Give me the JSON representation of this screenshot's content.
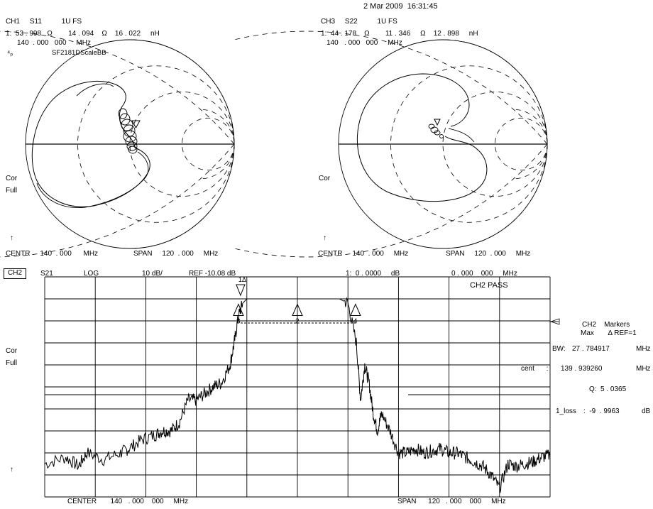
{
  "timestamp": "2 Mar 2009  16:31:45",
  "ch1": {
    "header": "CH1     S11          1U FS",
    "marker_line": "1:  53 . 998   Ω        14 . 094    Ω    16 . 022     nH",
    "freq_line": "140  . 000   000     MHz",
    "trace_note": "SF2181DScaleBB",
    "side_label_1": "Cor",
    "side_label_2": "Full",
    "arrow": "↑",
    "marker_num": "1",
    "footer_centr": "CENTR     140  . 000      MHz",
    "footer_span": "SPAN     120  . 000     MHz"
  },
  "ch3": {
    "header": "CH3     S22          1U FS",
    "marker_line": "1:  44 . 178    Ω        11 . 346     Ω    12 . 898     nH",
    "freq_line": "140   . 000   000     MHz",
    "side_label_1": "Cor",
    "arrow": "↑",
    "footer_centr": "CENTR     140  . 000     MHz",
    "footer_span": "SPAN     120  . 000     MHz"
  },
  "ch2": {
    "tag": "CH2",
    "param": "S21",
    "format": "LOG",
    "scale": "10 dB/",
    "ref": "REF -10.08 dB",
    "marker_readout": "1:  0 . 0000     dB",
    "marker_freq": "0 . 000    000     MHz",
    "pass_label": "CH2 PASS",
    "side_label_1": "Cor",
    "side_label_2": "Full",
    "arrow": "↑",
    "footer_center": "CENTER       140   . 000    000     MHz",
    "footer_span": "SPAN      120   . 000    000     MHz",
    "marker_panel": {
      "title": "CH2    Markers",
      "subtitle": "Max       Δ REF=1",
      "bw_label": "BW:",
      "bw_value": "27 . 784917",
      "bw_unit": "MHz",
      "cent_label": "cent      :",
      "cent_value": "139 . 939260",
      "cent_unit": "MHz",
      "q_label": "Q:",
      "q_value": "5 . 0365",
      "loss_label": "1_loss",
      "loss_value": ":  -9  . 9963",
      "loss_unit": "dB"
    },
    "markers": [
      "1",
      "2",
      "3",
      "4"
    ],
    "ref_marker_symbol": "1Δ"
  },
  "chart_data": [
    {
      "type": "smith",
      "channel": "CH1",
      "parameter": "S11",
      "scale": "1U FS",
      "marker_1": {
        "resistance_ohm": 53.998,
        "reactance_ohm": 14.094,
        "inductance_nH": 16.022,
        "freq_MHz": 140.0
      },
      "center_MHz": 140.0,
      "span_MHz": 120.0
    },
    {
      "type": "smith",
      "channel": "CH3",
      "parameter": "S22",
      "scale": "1U FS",
      "marker_1": {
        "resistance_ohm": 44.178,
        "reactance_ohm": 11.346,
        "inductance_nH": 12.898,
        "freq_MHz": 140.0
      },
      "center_MHz": 140.0,
      "span_MHz": 120.0
    },
    {
      "type": "line",
      "channel": "CH2",
      "parameter": "S21",
      "format": "LOG",
      "scale_dB_per_div": 10,
      "ref_dB": -10.08,
      "xlim": [
        80,
        200
      ],
      "ylim": [
        -100,
        0
      ],
      "grid": true,
      "x": [
        80,
        85,
        88,
        90,
        94,
        98,
        100,
        103,
        106,
        108,
        110,
        112,
        114,
        116,
        118,
        120,
        122,
        124,
        125,
        126,
        127,
        128,
        130,
        140,
        150,
        152,
        154,
        155,
        156,
        157,
        158,
        159,
        160,
        162,
        164,
        166,
        168,
        170,
        172,
        174,
        176,
        178,
        180,
        182,
        184,
        186,
        188,
        190,
        192,
        194,
        196,
        198,
        200
      ],
      "y": [
        -85,
        -82,
        -86,
        -80,
        -83,
        -80,
        -78,
        -74,
        -72,
        -70,
        -70,
        -66,
        -56,
        -56,
        -53,
        -50,
        -48,
        -40,
        -30,
        -18,
        -12,
        -10,
        -10,
        -10,
        -10,
        -12,
        -30,
        -56,
        -40,
        -48,
        -62,
        -70,
        -62,
        -70,
        -80,
        -80,
        -78,
        -80,
        -79,
        -78,
        -80,
        -80,
        -82,
        -84,
        -86,
        -90,
        -96,
        -85,
        -86,
        -85,
        -84,
        -82,
        -81
      ],
      "markers": [
        {
          "id": "1",
          "freq_MHz": 140.0,
          "dB": 0.0,
          "note": "reference (max)"
        },
        {
          "id": "2",
          "freq_MHz": 140.0
        },
        {
          "id": "3",
          "freq_MHz": 126.0
        },
        {
          "id": "4",
          "freq_MHz": 153.8
        }
      ],
      "bw_MHz": 27.784917,
      "center_MHz": 139.93926,
      "Q": 5.0365,
      "loss_dB": -9.9963,
      "start_MHz": 80,
      "stop_MHz": 200
    }
  ]
}
